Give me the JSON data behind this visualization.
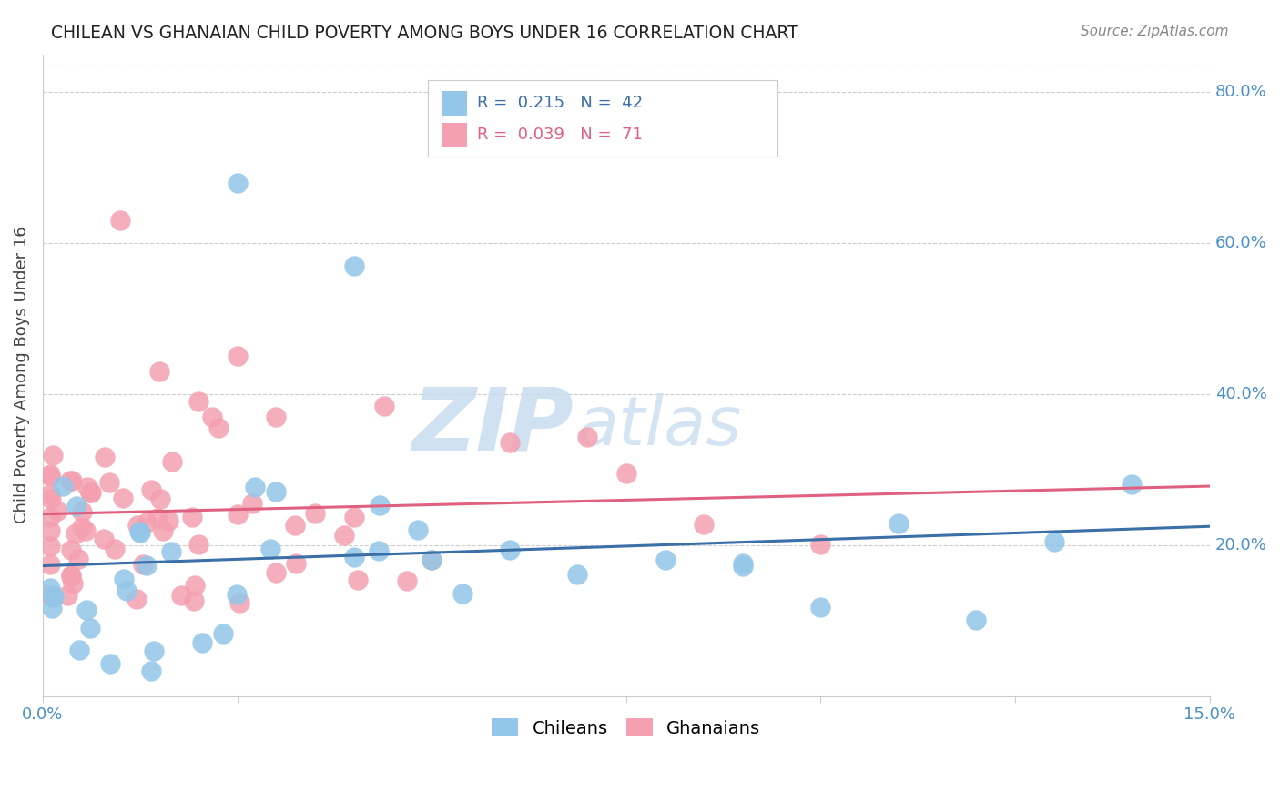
{
  "title": "CHILEAN VS GHANAIAN CHILD POVERTY AMONG BOYS UNDER 16 CORRELATION CHART",
  "source": "Source: ZipAtlas.com",
  "ylabel": "Child Poverty Among Boys Under 16",
  "xlim": [
    0.0,
    0.15
  ],
  "ylim": [
    0.0,
    0.85
  ],
  "ytick_labels": [
    "20.0%",
    "40.0%",
    "60.0%",
    "80.0%"
  ],
  "ytick_values": [
    0.2,
    0.4,
    0.6,
    0.8
  ],
  "blue_R": 0.215,
  "blue_N": 42,
  "pink_R": 0.039,
  "pink_N": 71,
  "blue_color": "#93C6E8",
  "pink_color": "#F4A0B0",
  "blue_line_color": "#3A6FA8",
  "pink_line_color": "#E06080",
  "legend_label_blue": "Chileans",
  "legend_label_pink": "Ghanaians",
  "watermark_zip": "ZIP",
  "watermark_atlas": "atlas",
  "watermark_color": "#C8DCF0"
}
